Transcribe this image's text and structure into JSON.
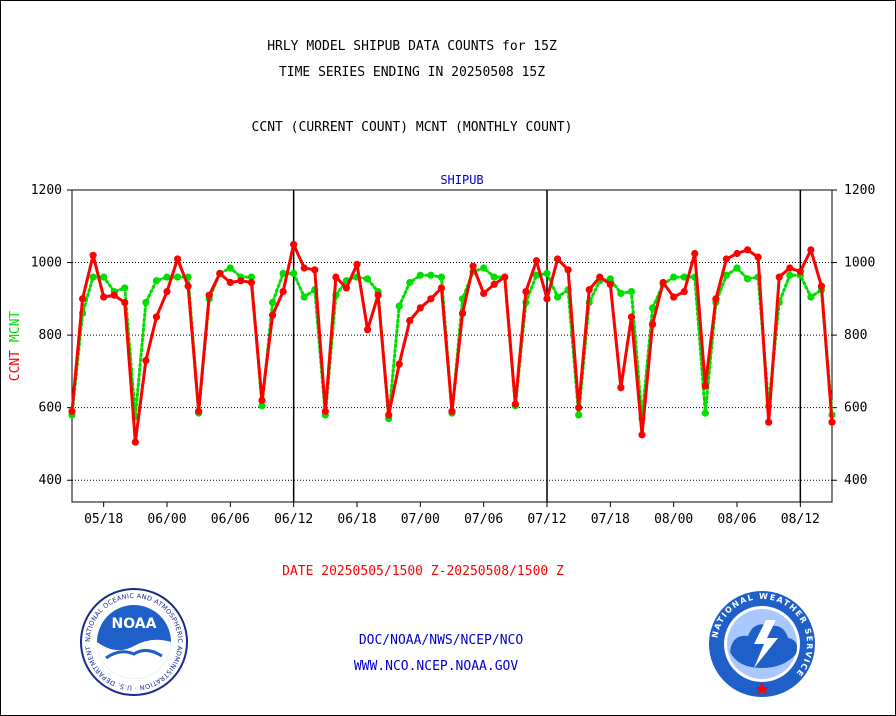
{
  "chart_data": {
    "type": "line",
    "title": "HRLY MODEL SHIPUB DATA COUNTS for 15Z",
    "subtitle": "TIME SERIES ENDING IN 20250508 15Z",
    "description": "CCNT (CURRENT COUNT) MCNT (MONTHLY COUNT)",
    "panel_label": "SHIPUB",
    "ylabel_parts": [
      {
        "text": "CCNT",
        "color": "#ff0000"
      },
      {
        "text": "MCNT",
        "color": "#00dd00"
      }
    ],
    "xlabel": "DATE 20250505/1500 Z-20250508/1500 Z",
    "ylim": [
      340,
      1200
    ],
    "yticks": [
      400,
      600,
      800,
      1000,
      1200
    ],
    "ytick_labels": [
      "400",
      "600",
      "800",
      "1000",
      "1200"
    ],
    "x_tick_labels": [
      "05/18",
      "06/00",
      "06/06",
      "06/12",
      "06/18",
      "07/00",
      "07/06",
      "07/12",
      "07/18",
      "08/00",
      "08/06",
      "08/12"
    ],
    "x_tick_hours": [
      3,
      9,
      15,
      21,
      27,
      33,
      39,
      45,
      51,
      57,
      63,
      69
    ],
    "x_range_hours": [
      0,
      72
    ],
    "day_boundaries_hours": [
      21,
      45,
      69
    ],
    "grid": true,
    "series": [
      {
        "name": "CCNT",
        "color": "#ff0000",
        "style": "solid",
        "values": [
          590,
          900,
          1020,
          905,
          910,
          890,
          505,
          730,
          850,
          920,
          1010,
          935,
          590,
          910,
          970,
          945,
          950,
          945,
          620,
          855,
          920,
          1050,
          985,
          980,
          590,
          960,
          930,
          995,
          815,
          910,
          580,
          720,
          840,
          875,
          900,
          930,
          590,
          860,
          990,
          915,
          940,
          960,
          610,
          920,
          1005,
          900,
          1010,
          980,
          600,
          925,
          960,
          940,
          655,
          850,
          525,
          830,
          945,
          905,
          920,
          1025,
          660,
          900,
          1010,
          1025,
          1035,
          1015,
          560,
          960,
          985,
          975,
          1035,
          935,
          560
        ]
      },
      {
        "name": "MCNT",
        "color": "#00dd00",
        "style": "dotted",
        "values": [
          580,
          860,
          960,
          960,
          920,
          930,
          575,
          890,
          950,
          960,
          960,
          960,
          585,
          900,
          970,
          985,
          960,
          960,
          605,
          890,
          970,
          970,
          905,
          925,
          580,
          910,
          950,
          960,
          955,
          920,
          570,
          880,
          945,
          965,
          965,
          960,
          585,
          900,
          975,
          985,
          960,
          960,
          605,
          890,
          965,
          970,
          905,
          925,
          580,
          890,
          950,
          955,
          915,
          920,
          570,
          875,
          940,
          960,
          960,
          960,
          585,
          890,
          965,
          985,
          955,
          960,
          605,
          890,
          965,
          965,
          905,
          925,
          580
        ]
      }
    ]
  },
  "footer": {
    "line1": "DOC/NOAA/NWS/NCEP/NCO",
    "line2": "WWW.NCO.NCEP.NOAA.GOV",
    "color": "#0000cc"
  },
  "logos": {
    "left": {
      "name": "noaa-logo",
      "text": "NOAA",
      "ring_text": "NATIONAL OCEANIC AND ATMOSPHERIC ADMINISTRATION · U.S. DEPARTMENT OF COMMERCE"
    },
    "right": {
      "name": "nws-logo",
      "ring_text": "NATIONAL WEATHER SERVICE"
    }
  }
}
